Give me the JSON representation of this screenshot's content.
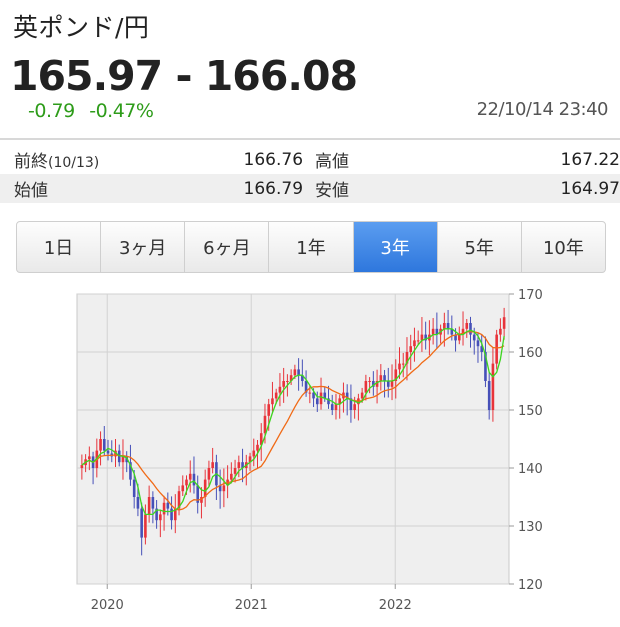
{
  "header": {
    "pair": "英ポンド/円",
    "rate": "165.97 - 166.08",
    "change": "-0.79",
    "change_pct": "-0.47%",
    "timestamp": "22/10/14 23:40",
    "change_color": "#2e9c1a"
  },
  "stats": {
    "prev_close_label": "前終",
    "prev_close_date": "(10/13)",
    "prev_close": "166.76",
    "high_label": "高値",
    "high": "167.22",
    "open_label": "始値",
    "open": "166.79",
    "low_label": "安値",
    "low": "164.97"
  },
  "tabs": [
    {
      "label": "1日",
      "active": false
    },
    {
      "label": "3ヶ月",
      "active": false
    },
    {
      "label": "6ヶ月",
      "active": false
    },
    {
      "label": "1年",
      "active": false
    },
    {
      "label": "3年",
      "active": true
    },
    {
      "label": "5年",
      "active": false
    },
    {
      "label": "10年",
      "active": false
    }
  ],
  "chart_data": {
    "type": "candlestick",
    "x_ticks": [
      "2020",
      "2021",
      "2022"
    ],
    "x_tick_positions": [
      2020.0,
      2021.0,
      2022.0
    ],
    "x_range": [
      2019.79,
      2022.79
    ],
    "y_ticks": [
      120,
      130,
      140,
      150,
      160,
      170
    ],
    "ylim": [
      120,
      170
    ],
    "grid": true,
    "colors": {
      "up": "#e8333a",
      "down": "#4650b8",
      "ma_short": "#3cd51f",
      "ma_long": "#f06a16"
    },
    "series_weekly_close_approx": [
      140.5,
      141.5,
      142,
      140,
      143,
      145,
      143,
      142.5,
      142,
      143,
      141,
      142,
      141,
      138,
      135,
      133,
      128,
      132,
      135,
      133,
      131,
      132,
      134,
      133,
      131,
      133,
      136,
      137,
      138,
      139,
      137,
      134,
      135,
      138,
      140,
      141,
      137,
      136,
      137,
      138,
      139,
      140,
      141,
      140,
      141,
      142,
      143,
      144,
      146,
      149,
      151,
      152,
      153,
      154,
      155,
      155,
      156,
      157,
      156,
      155,
      153,
      153,
      152,
      151,
      153,
      152,
      151,
      150,
      151,
      152,
      153,
      152,
      150,
      151,
      152,
      153,
      155,
      155,
      154,
      155,
      156,
      155,
      154,
      155,
      157,
      158,
      158,
      160,
      161,
      162,
      162,
      163,
      162,
      163,
      164,
      163,
      164,
      165,
      164,
      163,
      162,
      163,
      164,
      165,
      163,
      162,
      161,
      160,
      155,
      150,
      158,
      163,
      164,
      166
    ]
  }
}
